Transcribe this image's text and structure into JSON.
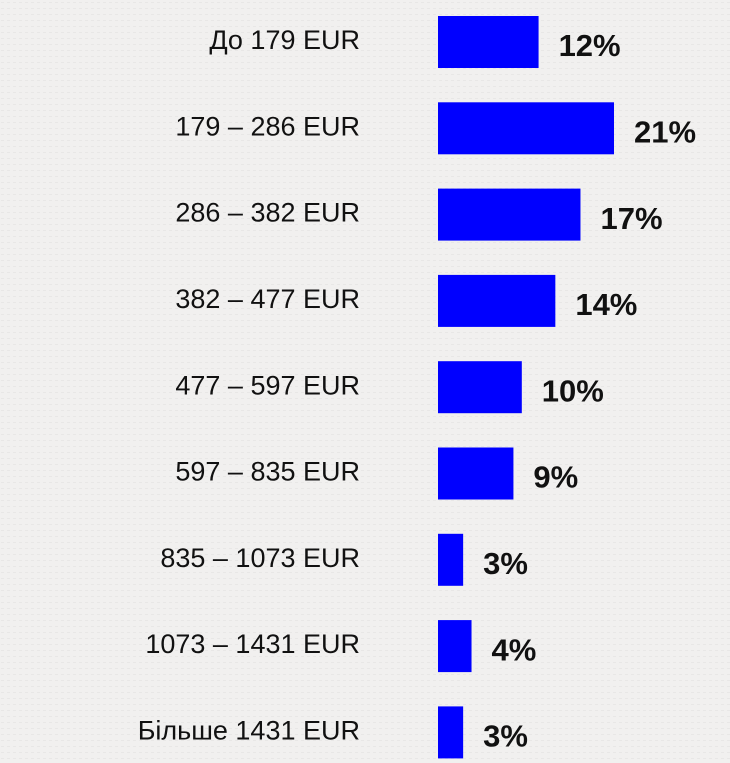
{
  "chart_data": {
    "type": "hbar",
    "categories": [
      "До 179 EUR",
      "179 – 286 EUR",
      "286 – 382 EUR",
      "382 – 477 EUR",
      "477 – 597 EUR",
      "597 – 835 EUR",
      "835 – 1073 EUR",
      "1073 – 1431 EUR",
      "Більше 1431 EUR"
    ],
    "values": [
      12,
      21,
      17,
      14,
      10,
      9,
      3,
      4,
      3
    ],
    "value_labels": [
      "12%",
      "21%",
      "17%",
      "14%",
      "10%",
      "9%",
      "3%",
      "4%",
      "3%"
    ],
    "color": "#0000ff"
  }
}
